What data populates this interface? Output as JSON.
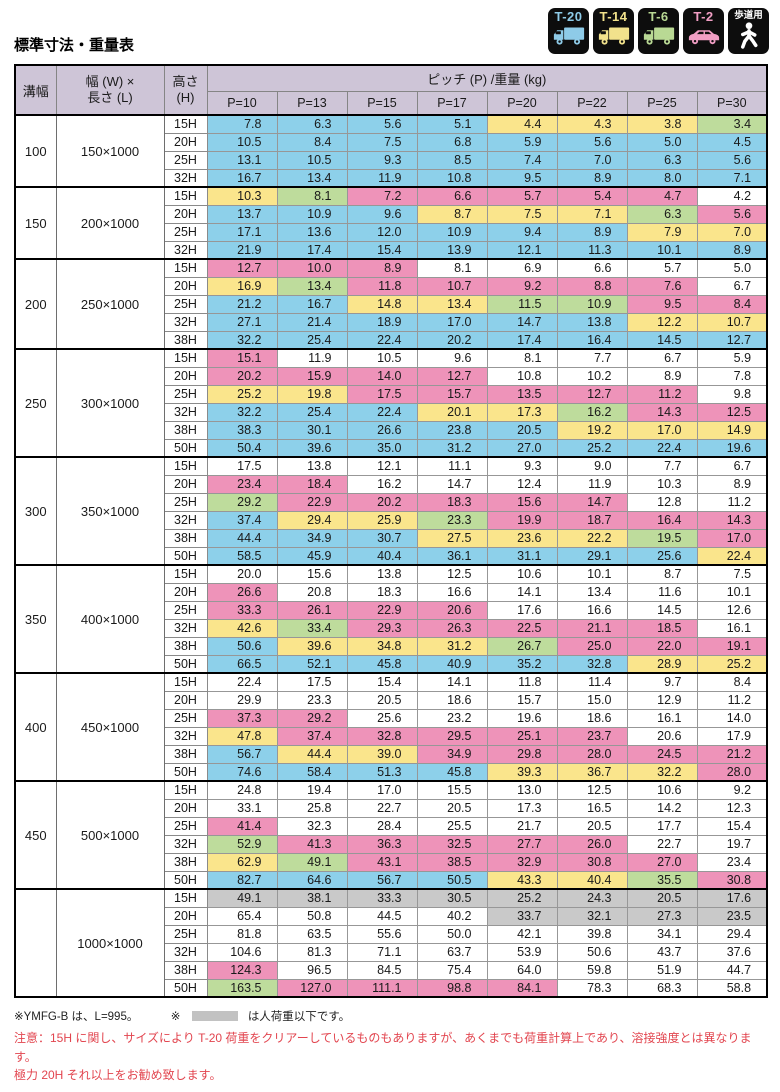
{
  "title": "標準寸法・重量表",
  "legend": {
    "items": [
      {
        "id": "t20",
        "label": "T-20",
        "color": "#8ecbe8",
        "type": "truck"
      },
      {
        "id": "t14",
        "label": "T-14",
        "color": "#f2e28c",
        "type": "truck"
      },
      {
        "id": "t6",
        "label": "T-6",
        "color": "#b9d994",
        "type": "truck"
      },
      {
        "id": "t2",
        "label": "T-2",
        "color": "#f19ec4",
        "type": "car"
      },
      {
        "id": "walk",
        "label": "歩道用",
        "color": "#ffffff",
        "type": "person"
      }
    ]
  },
  "colors": {
    "b": "#8dd0ea",
    "y": "#fae58c",
    "p": "#ee93b9",
    "g": "#bedc9c",
    "x": "#c9c9c9",
    "n": "#ffffff",
    "header": "#cec5d7",
    "swatch": "#c2c2c2",
    "warn": "#e2454f"
  },
  "table": {
    "col_groove": "溝幅",
    "col_size_line1": "幅 (W) ×",
    "col_size_line2": "長さ (L)",
    "col_height_line1": "高さ",
    "col_height_line2": "(H)",
    "pitch_header": "ピッチ (P) /重量 (kg)",
    "pitches": [
      "P=10",
      "P=13",
      "P=15",
      "P=17",
      "P=20",
      "P=22",
      "P=25",
      "P=30"
    ],
    "groups": [
      {
        "groove": "100",
        "size": "150×1000",
        "rows": [
          {
            "h": "15H",
            "values": [
              "7.8",
              "6.3",
              "5.6",
              "5.1",
              "4.4",
              "4.3",
              "3.8",
              "3.4"
            ],
            "colors": "bbbbyyyg"
          },
          {
            "h": "20H",
            "values": [
              "10.5",
              "8.4",
              "7.5",
              "6.8",
              "5.9",
              "5.6",
              "5.0",
              "4.5"
            ],
            "colors": "bbbbbbbb"
          },
          {
            "h": "25H",
            "values": [
              "13.1",
              "10.5",
              "9.3",
              "8.5",
              "7.4",
              "7.0",
              "6.3",
              "5.6"
            ],
            "colors": "bbbbbbbb"
          },
          {
            "h": "32H",
            "values": [
              "16.7",
              "13.4",
              "11.9",
              "10.8",
              "9.5",
              "8.9",
              "8.0",
              "7.1"
            ],
            "colors": "bbbbbbbb"
          }
        ]
      },
      {
        "groove": "150",
        "size": "200×1000",
        "rows": [
          {
            "h": "15H",
            "values": [
              "10.3",
              "8.1",
              "7.2",
              "6.6",
              "5.7",
              "5.4",
              "4.7",
              "4.2"
            ],
            "colors": "ygpppppn"
          },
          {
            "h": "20H",
            "values": [
              "13.7",
              "10.9",
              "9.6",
              "8.7",
              "7.5",
              "7.1",
              "6.3",
              "5.6"
            ],
            "colors": "bbbyyygp"
          },
          {
            "h": "25H",
            "values": [
              "17.1",
              "13.6",
              "12.0",
              "10.9",
              "9.4",
              "8.9",
              "7.9",
              "7.0"
            ],
            "colors": "bbbbbbyy"
          },
          {
            "h": "32H",
            "values": [
              "21.9",
              "17.4",
              "15.4",
              "13.9",
              "12.1",
              "11.3",
              "10.1",
              "8.9"
            ],
            "colors": "bbbbbbbb"
          }
        ]
      },
      {
        "groove": "200",
        "size": "250×1000",
        "rows": [
          {
            "h": "15H",
            "values": [
              "12.7",
              "10.0",
              "8.9",
              "8.1",
              "6.9",
              "6.6",
              "5.7",
              "5.0"
            ],
            "colors": "pppnnnnn"
          },
          {
            "h": "20H",
            "values": [
              "16.9",
              "13.4",
              "11.8",
              "10.7",
              "9.2",
              "8.8",
              "7.6",
              "6.7"
            ],
            "colors": "ygpppppn"
          },
          {
            "h": "25H",
            "values": [
              "21.2",
              "16.7",
              "14.8",
              "13.4",
              "11.5",
              "10.9",
              "9.5",
              "8.4"
            ],
            "colors": "bbyyggpp"
          },
          {
            "h": "32H",
            "values": [
              "27.1",
              "21.4",
              "18.9",
              "17.0",
              "14.7",
              "13.8",
              "12.2",
              "10.7"
            ],
            "colors": "bbbbbbyy"
          },
          {
            "h": "38H",
            "values": [
              "32.2",
              "25.4",
              "22.4",
              "20.2",
              "17.4",
              "16.4",
              "14.5",
              "12.7"
            ],
            "colors": "bbbbbbbb"
          }
        ]
      },
      {
        "groove": "250",
        "size": "300×1000",
        "rows": [
          {
            "h": "15H",
            "values": [
              "15.1",
              "11.9",
              "10.5",
              "9.6",
              "8.1",
              "7.7",
              "6.7",
              "5.9"
            ],
            "colors": "pnnnnnnn"
          },
          {
            "h": "20H",
            "values": [
              "20.2",
              "15.9",
              "14.0",
              "12.7",
              "10.8",
              "10.2",
              "8.9",
              "7.8"
            ],
            "colors": "ppppnnnn"
          },
          {
            "h": "25H",
            "values": [
              "25.2",
              "19.8",
              "17.5",
              "15.7",
              "13.5",
              "12.7",
              "11.2",
              "9.8"
            ],
            "colors": "yypppppn"
          },
          {
            "h": "32H",
            "values": [
              "32.2",
              "25.4",
              "22.4",
              "20.1",
              "17.3",
              "16.2",
              "14.3",
              "12.5"
            ],
            "colors": "bbbyygpp"
          },
          {
            "h": "38H",
            "values": [
              "38.3",
              "30.1",
              "26.6",
              "23.8",
              "20.5",
              "19.2",
              "17.0",
              "14.9"
            ],
            "colors": "bbbbbyyy"
          },
          {
            "h": "50H",
            "values": [
              "50.4",
              "39.6",
              "35.0",
              "31.2",
              "27.0",
              "25.2",
              "22.4",
              "19.6"
            ],
            "colors": "bbbbbbbb"
          }
        ]
      },
      {
        "groove": "300",
        "size": "350×1000",
        "rows": [
          {
            "h": "15H",
            "values": [
              "17.5",
              "13.8",
              "12.1",
              "11.1",
              "9.3",
              "9.0",
              "7.7",
              "6.7"
            ],
            "colors": "nnnnnnnn"
          },
          {
            "h": "20H",
            "values": [
              "23.4",
              "18.4",
              "16.2",
              "14.7",
              "12.4",
              "11.9",
              "10.3",
              "8.9"
            ],
            "colors": "ppnnnnnn"
          },
          {
            "h": "25H",
            "values": [
              "29.2",
              "22.9",
              "20.2",
              "18.3",
              "15.6",
              "14.7",
              "12.8",
              "11.2"
            ],
            "colors": "gpppppnn"
          },
          {
            "h": "32H",
            "values": [
              "37.4",
              "29.4",
              "25.9",
              "23.3",
              "19.9",
              "18.7",
              "16.4",
              "14.3"
            ],
            "colors": "byygpppp"
          },
          {
            "h": "38H",
            "values": [
              "44.4",
              "34.9",
              "30.7",
              "27.5",
              "23.6",
              "22.2",
              "19.5",
              "17.0"
            ],
            "colors": "bbbyyygp"
          },
          {
            "h": "50H",
            "values": [
              "58.5",
              "45.9",
              "40.4",
              "36.1",
              "31.1",
              "29.1",
              "25.6",
              "22.4"
            ],
            "colors": "bbbbbbby"
          }
        ]
      },
      {
        "groove": "350",
        "size": "400×1000",
        "rows": [
          {
            "h": "15H",
            "values": [
              "20.0",
              "15.6",
              "13.8",
              "12.5",
              "10.6",
              "10.1",
              "8.7",
              "7.5"
            ],
            "colors": "nnnnnnnn"
          },
          {
            "h": "20H",
            "values": [
              "26.6",
              "20.8",
              "18.3",
              "16.6",
              "14.1",
              "13.4",
              "11.6",
              "10.1"
            ],
            "colors": "pnnnnnnn"
          },
          {
            "h": "25H",
            "values": [
              "33.3",
              "26.1",
              "22.9",
              "20.6",
              "17.6",
              "16.6",
              "14.5",
              "12.6"
            ],
            "colors": "ppppnnnn"
          },
          {
            "h": "32H",
            "values": [
              "42.6",
              "33.4",
              "29.3",
              "26.3",
              "22.5",
              "21.1",
              "18.5",
              "16.1"
            ],
            "colors": "ygpppppn"
          },
          {
            "h": "38H",
            "values": [
              "50.6",
              "39.6",
              "34.8",
              "31.2",
              "26.7",
              "25.0",
              "22.0",
              "19.1"
            ],
            "colors": "byyygppp"
          },
          {
            "h": "50H",
            "values": [
              "66.5",
              "52.1",
              "45.8",
              "40.9",
              "35.2",
              "32.8",
              "28.9",
              "25.2"
            ],
            "colors": "bbbbbbyy"
          }
        ]
      },
      {
        "groove": "400",
        "size": "450×1000",
        "rows": [
          {
            "h": "15H",
            "values": [
              "22.4",
              "17.5",
              "15.4",
              "14.1",
              "11.8",
              "11.4",
              "9.7",
              "8.4"
            ],
            "colors": "nnnnnnnn"
          },
          {
            "h": "20H",
            "values": [
              "29.9",
              "23.3",
              "20.5",
              "18.6",
              "15.7",
              "15.0",
              "12.9",
              "11.2"
            ],
            "colors": "nnnnnnnn"
          },
          {
            "h": "25H",
            "values": [
              "37.3",
              "29.2",
              "25.6",
              "23.2",
              "19.6",
              "18.6",
              "16.1",
              "14.0"
            ],
            "colors": "ppnnnnnn"
          },
          {
            "h": "32H",
            "values": [
              "47.8",
              "37.4",
              "32.8",
              "29.5",
              "25.1",
              "23.7",
              "20.6",
              "17.9"
            ],
            "colors": "ypppppnn"
          },
          {
            "h": "38H",
            "values": [
              "56.7",
              "44.4",
              "39.0",
              "34.9",
              "29.8",
              "28.0",
              "24.5",
              "21.2"
            ],
            "colors": "byyppppp"
          },
          {
            "h": "50H",
            "values": [
              "74.6",
              "58.4",
              "51.3",
              "45.8",
              "39.3",
              "36.7",
              "32.2",
              "28.0"
            ],
            "colors": "bbbbyyyp"
          }
        ]
      },
      {
        "groove": "450",
        "size": "500×1000",
        "rows": [
          {
            "h": "15H",
            "values": [
              "24.8",
              "19.4",
              "17.0",
              "15.5",
              "13.0",
              "12.5",
              "10.6",
              "9.2"
            ],
            "colors": "nnnnnnnn"
          },
          {
            "h": "20H",
            "values": [
              "33.1",
              "25.8",
              "22.7",
              "20.5",
              "17.3",
              "16.5",
              "14.2",
              "12.3"
            ],
            "colors": "nnnnnnnn"
          },
          {
            "h": "25H",
            "values": [
              "41.4",
              "32.3",
              "28.4",
              "25.5",
              "21.7",
              "20.5",
              "17.7",
              "15.4"
            ],
            "colors": "pnnnnnnn"
          },
          {
            "h": "32H",
            "values": [
              "52.9",
              "41.3",
              "36.3",
              "32.5",
              "27.7",
              "26.0",
              "22.7",
              "19.7"
            ],
            "colors": "gpppppnn"
          },
          {
            "h": "38H",
            "values": [
              "62.9",
              "49.1",
              "43.1",
              "38.5",
              "32.9",
              "30.8",
              "27.0",
              "23.4"
            ],
            "colors": "ygpppppn"
          },
          {
            "h": "50H",
            "values": [
              "82.7",
              "64.6",
              "56.7",
              "50.5",
              "43.3",
              "40.4",
              "35.5",
              "30.8"
            ],
            "colors": "bbbbyygp"
          }
        ]
      },
      {
        "groove": "",
        "size": "1000×1000",
        "rows": [
          {
            "h": "15H",
            "values": [
              "49.1",
              "38.1",
              "33.3",
              "30.5",
              "25.2",
              "24.3",
              "20.5",
              "17.6"
            ],
            "colors": "xxxxxxxx"
          },
          {
            "h": "20H",
            "values": [
              "65.4",
              "50.8",
              "44.5",
              "40.2",
              "33.7",
              "32.1",
              "27.3",
              "23.5"
            ],
            "colors": "nnnnxxxx"
          },
          {
            "h": "25H",
            "values": [
              "81.8",
              "63.5",
              "55.6",
              "50.0",
              "42.1",
              "39.8",
              "34.1",
              "29.4"
            ],
            "colors": "nnnnnnnn"
          },
          {
            "h": "32H",
            "values": [
              "104.6",
              "81.3",
              "71.1",
              "63.7",
              "53.9",
              "50.6",
              "43.7",
              "37.6"
            ],
            "colors": "nnnnnnnn"
          },
          {
            "h": "38H",
            "values": [
              "124.3",
              "96.5",
              "84.5",
              "75.4",
              "64.0",
              "59.8",
              "51.9",
              "44.7"
            ],
            "colors": "pnnnnnnn"
          },
          {
            "h": "50H",
            "values": [
              "163.5",
              "127.0",
              "111.1",
              "98.8",
              "84.1",
              "78.3",
              "68.3",
              "58.8"
            ],
            "colors": "gppppnnn"
          }
        ]
      }
    ]
  },
  "footnotes": {
    "note1": "※YMFG-B は、L=995。",
    "note2_prefix": "※",
    "note2_suffix": "は人荷重以下です。",
    "warning1": "注意：15H に関し、サイズにより T-20 荷重をクリアーしているものもありますが、あくまでも荷重計算上であり、溶接強度とは異なります。",
    "warning2": "極力 20H それ以上をお勧め致します。"
  }
}
